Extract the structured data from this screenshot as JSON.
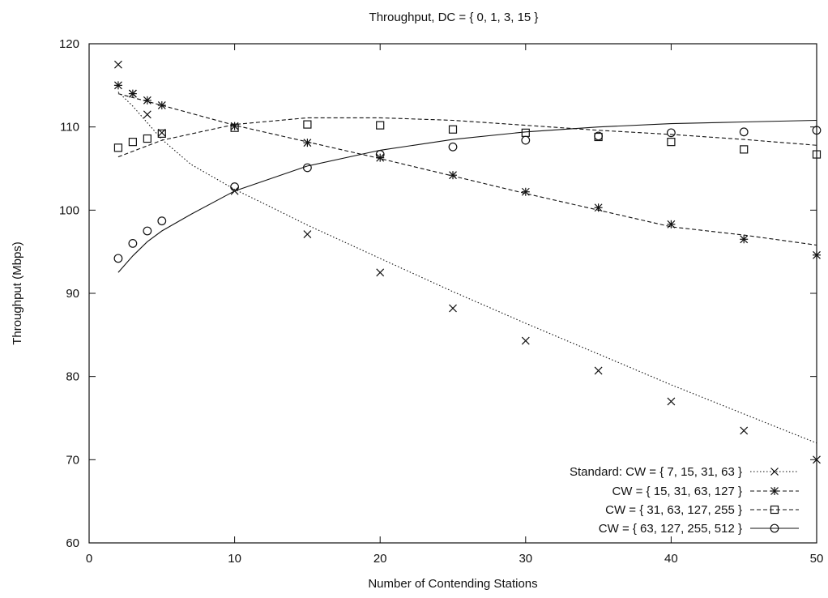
{
  "chart_data": {
    "type": "scatter",
    "title": "Throughput, DC = { 0, 1, 3, 15 }",
    "xlabel": "Number of Contending Stations",
    "ylabel": "Throughput (Mbps)",
    "xlim": [
      0,
      50
    ],
    "ylim": [
      60,
      120
    ],
    "xticks": [
      0,
      10,
      20,
      30,
      40,
      50
    ],
    "yticks": [
      60,
      70,
      80,
      90,
      100,
      110,
      120
    ],
    "grid": false,
    "legend_position": "bottom-right",
    "series": [
      {
        "name": "Standard: CW = { 7, 15, 31, 63 }",
        "marker": "x",
        "line_style": "dotted",
        "x": [
          2,
          3,
          4,
          5,
          10,
          15,
          20,
          25,
          30,
          35,
          40,
          45,
          50
        ],
        "y": [
          117.5,
          114,
          111.5,
          109.3,
          102.3,
          97.1,
          92.5,
          88.2,
          84.3,
          80.7,
          77,
          73.5,
          70
        ],
        "curve_x": [
          2,
          3,
          4,
          5,
          7,
          10,
          12,
          15,
          20,
          25,
          30,
          35,
          40,
          45,
          50
        ],
        "curve_y": [
          114.2,
          112.5,
          110.5,
          108.5,
          105.5,
          102.5,
          100.8,
          98.2,
          94.2,
          90.2,
          86.4,
          82.7,
          79,
          75.5,
          72
        ]
      },
      {
        "name": "CW = { 15, 31, 63, 127 }",
        "marker": "asterisk",
        "line_style": "dashed",
        "x": [
          2,
          3,
          4,
          5,
          10,
          15,
          20,
          25,
          30,
          35,
          40,
          45,
          50
        ],
        "y": [
          115,
          114,
          113.2,
          112.6,
          110.1,
          108.1,
          106.3,
          104.2,
          102.2,
          100.3,
          98.3,
          96.5,
          94.6
        ],
        "curve_x": [
          2,
          5,
          10,
          15,
          20,
          25,
          30,
          35,
          40,
          45,
          50
        ],
        "curve_y": [
          114,
          112.6,
          110.2,
          108.2,
          106.2,
          104.1,
          102,
          100,
          98,
          97,
          95.8
        ]
      },
      {
        "name": "CW = { 31, 63, 127, 255 }",
        "marker": "square",
        "line_style": "dashed",
        "x": [
          2,
          3,
          4,
          5,
          10,
          15,
          20,
          25,
          30,
          35,
          40,
          45,
          50
        ],
        "y": [
          107.5,
          108.2,
          108.6,
          109.2,
          109.9,
          110.3,
          110.2,
          109.7,
          109.3,
          108.8,
          108.2,
          107.3,
          106.7
        ],
        "curve_x": [
          2,
          5,
          10,
          15,
          20,
          25,
          30,
          35,
          40,
          45,
          50
        ],
        "curve_y": [
          106.4,
          108.4,
          110.3,
          111.1,
          111.1,
          110.8,
          110.2,
          109.6,
          109.1,
          108.5,
          107.8
        ]
      },
      {
        "name": "CW = { 63, 127, 255, 512 }",
        "marker": "circle",
        "line_style": "solid",
        "x": [
          2,
          3,
          4,
          5,
          10,
          15,
          20,
          25,
          30,
          35,
          40,
          45,
          50
        ],
        "y": [
          94.2,
          96,
          97.5,
          98.7,
          102.8,
          105.1,
          106.7,
          107.6,
          108.4,
          108.9,
          109.3,
          109.4,
          109.6
        ],
        "curve_x": [
          2,
          3,
          4,
          5,
          7,
          10,
          15,
          20,
          25,
          30,
          35,
          40,
          45,
          50
        ],
        "curve_y": [
          92.5,
          94.5,
          96.2,
          97.5,
          99.5,
          102.3,
          105.3,
          107.2,
          108.5,
          109.4,
          110,
          110.4,
          110.6,
          110.8
        ]
      }
    ]
  }
}
